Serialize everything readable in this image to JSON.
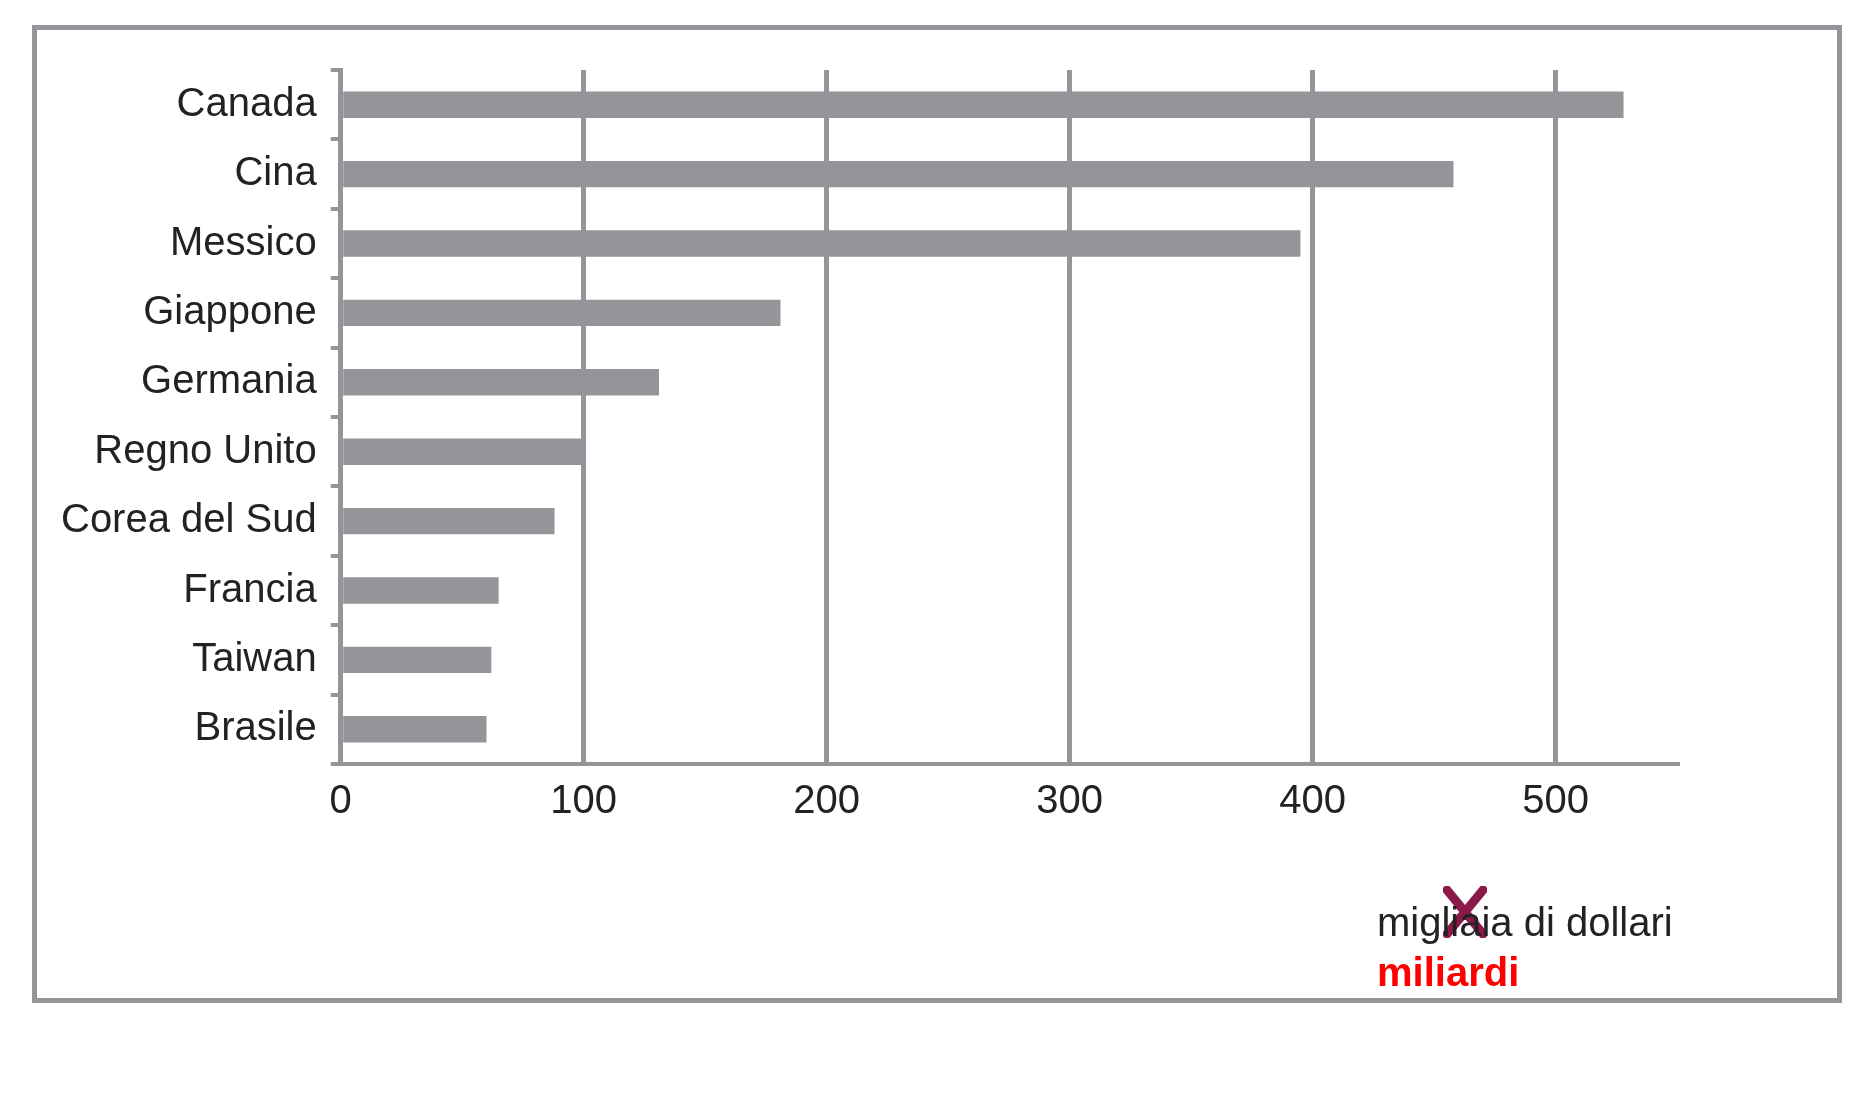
{
  "chart_data": {
    "type": "bar",
    "orientation": "horizontal",
    "categories": [
      "Canada",
      "Cina",
      "Messico",
      "Giappone",
      "Germania",
      "Regno Unito",
      "Corea del Sud",
      "Francia",
      "Taiwan",
      "Brasile"
    ],
    "values": [
      528,
      458,
      395,
      181,
      131,
      100,
      88,
      65,
      62,
      60
    ],
    "color": "#939598",
    "xlim": [
      0,
      550
    ],
    "xticks": [
      0,
      100,
      200,
      300,
      400,
      500
    ],
    "grid": "x",
    "legend": false,
    "xlabel": "migliaia di dollari",
    "annotations": [
      "miliardi"
    ]
  }
}
